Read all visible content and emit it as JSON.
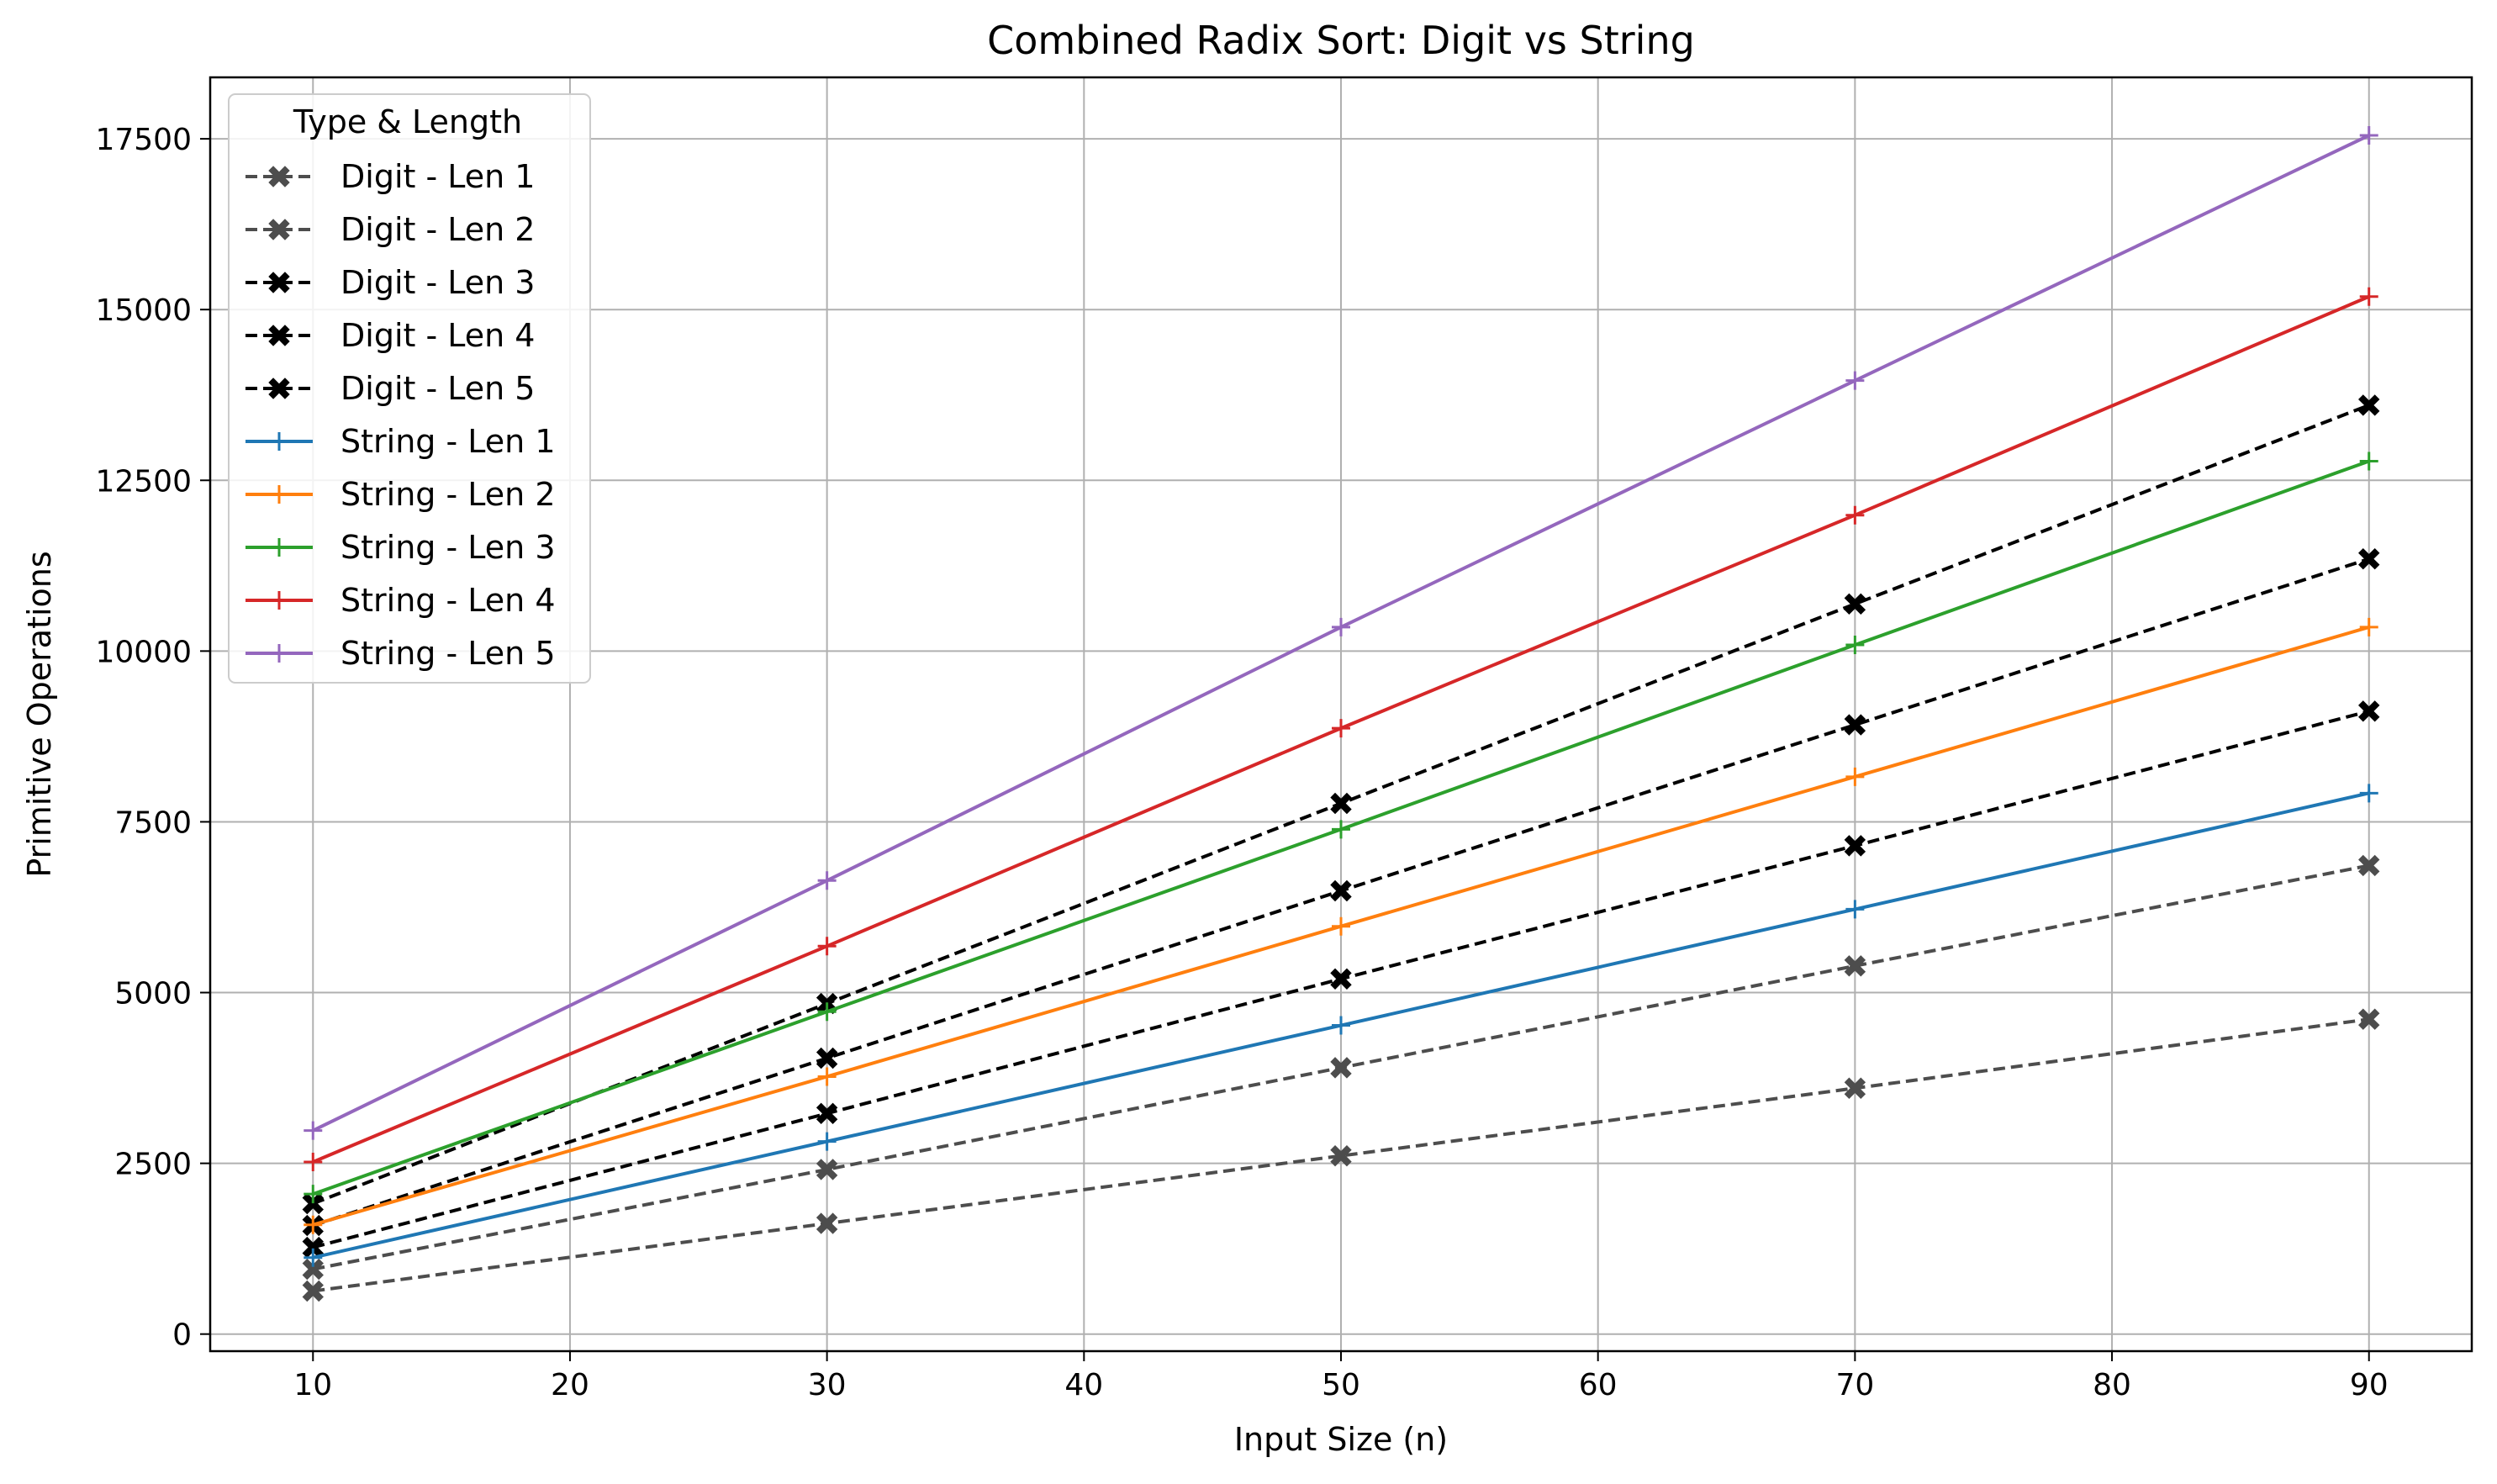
{
  "chart_data": {
    "type": "line",
    "title": "Combined Radix Sort: Digit vs String",
    "xlabel": "Input Size (n)",
    "ylabel": "Primitive Operations",
    "xlim": [
      6,
      94
    ],
    "ylim": [
      -250,
      18400
    ],
    "x_ticks": [
      10,
      20,
      30,
      40,
      50,
      60,
      70,
      80,
      90
    ],
    "y_ticks": [
      0,
      2500,
      5000,
      7500,
      10000,
      12500,
      15000,
      17500
    ],
    "grid": true,
    "legend_title": "Type & Length",
    "legend_position": "upper left",
    "x": [
      10,
      30,
      50,
      70,
      90
    ],
    "series": [
      {
        "name": "Digit - Len 1",
        "color": "#4d4d4d",
        "style": "dashed",
        "marker": "X",
        "values": [
          630,
          1620,
          2610,
          3600,
          4610
        ]
      },
      {
        "name": "Digit - Len 2",
        "color": "#4d4d4d",
        "style": "dashed",
        "marker": "X",
        "values": [
          950,
          2410,
          3900,
          5390,
          6860
        ]
      },
      {
        "name": "Digit - Len 3",
        "color": "#000000",
        "style": "dashed",
        "marker": "X",
        "values": [
          1270,
          3230,
          5200,
          7150,
          9120
        ]
      },
      {
        "name": "Digit - Len 4",
        "color": "#000000",
        "style": "dashed",
        "marker": "X",
        "values": [
          1590,
          4040,
          6490,
          8920,
          11350
        ]
      },
      {
        "name": "Digit - Len 5",
        "color": "#000000",
        "style": "dashed",
        "marker": "X",
        "values": [
          1910,
          4840,
          7770,
          10690,
          13600
        ]
      },
      {
        "name": "String - Len 1",
        "color": "#1f77b4",
        "style": "solid",
        "marker": "+",
        "values": [
          1120,
          2820,
          4520,
          6220,
          7920
        ]
      },
      {
        "name": "String - Len 2",
        "color": "#ff7f0e",
        "style": "solid",
        "marker": "+",
        "values": [
          1600,
          3770,
          5970,
          8160,
          10350
        ]
      },
      {
        "name": "String - Len 3",
        "color": "#2ca02c",
        "style": "solid",
        "marker": "+",
        "values": [
          2050,
          4720,
          7390,
          10090,
          12780
        ]
      },
      {
        "name": "String - Len 4",
        "color": "#d62728",
        "style": "solid",
        "marker": "+",
        "values": [
          2520,
          5680,
          8870,
          11990,
          15190
        ]
      },
      {
        "name": "String - Len 5",
        "color": "#9467bd",
        "style": "solid",
        "marker": "+",
        "values": [
          2980,
          6640,
          10350,
          13960,
          17550
        ]
      }
    ]
  }
}
